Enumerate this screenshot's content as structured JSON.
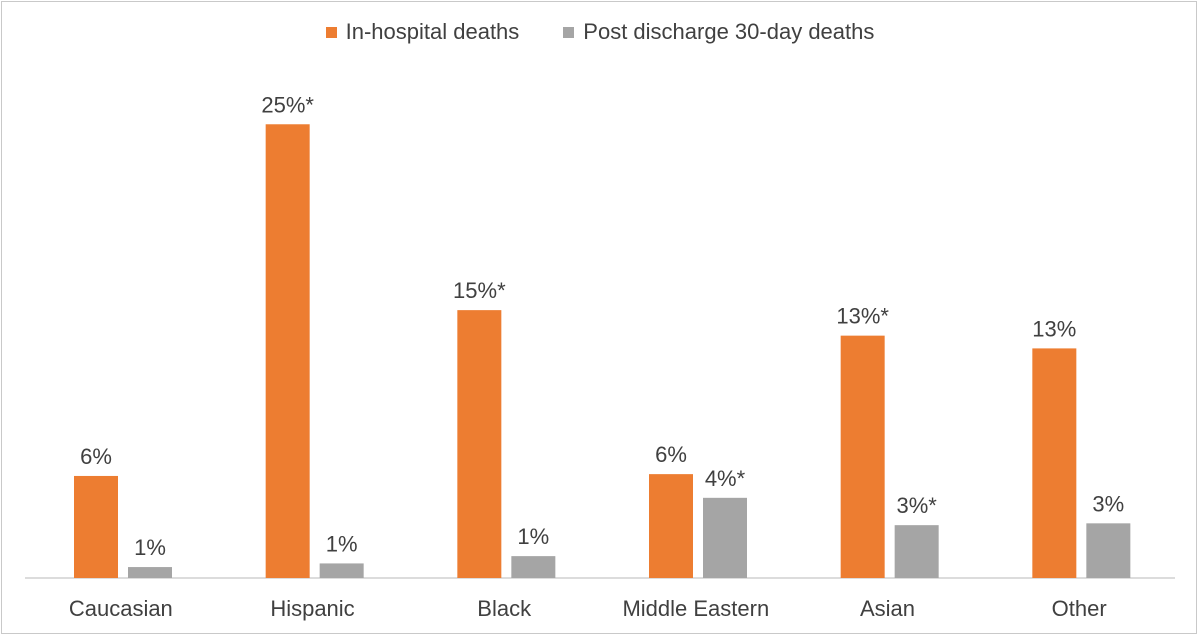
{
  "chart_data": {
    "type": "bar",
    "title": "",
    "xlabel": "",
    "ylabel": "",
    "categories": [
      "Caucasian",
      "Hispanic",
      "Black",
      "Middle Eastern",
      "Asian",
      "Other"
    ],
    "series": [
      {
        "name": "In-hospital deaths",
        "color": "#ED7D31",
        "values": [
          5.6,
          24.9,
          14.7,
          5.7,
          13.3,
          12.6
        ],
        "labels": [
          "6%",
          "25%*",
          "15%*",
          "6%",
          "13%*",
          "13%"
        ]
      },
      {
        "name": "Post discharge 30-day deaths",
        "color": "#A5A5A5",
        "values": [
          0.6,
          0.8,
          1.2,
          4.4,
          2.9,
          3.0
        ],
        "labels": [
          "1%",
          "1%",
          "1%",
          "4%*",
          "3%*",
          "3%"
        ]
      }
    ],
    "ylim": [
      0,
      27
    ],
    "grid": false,
    "legend": "top-center"
  }
}
